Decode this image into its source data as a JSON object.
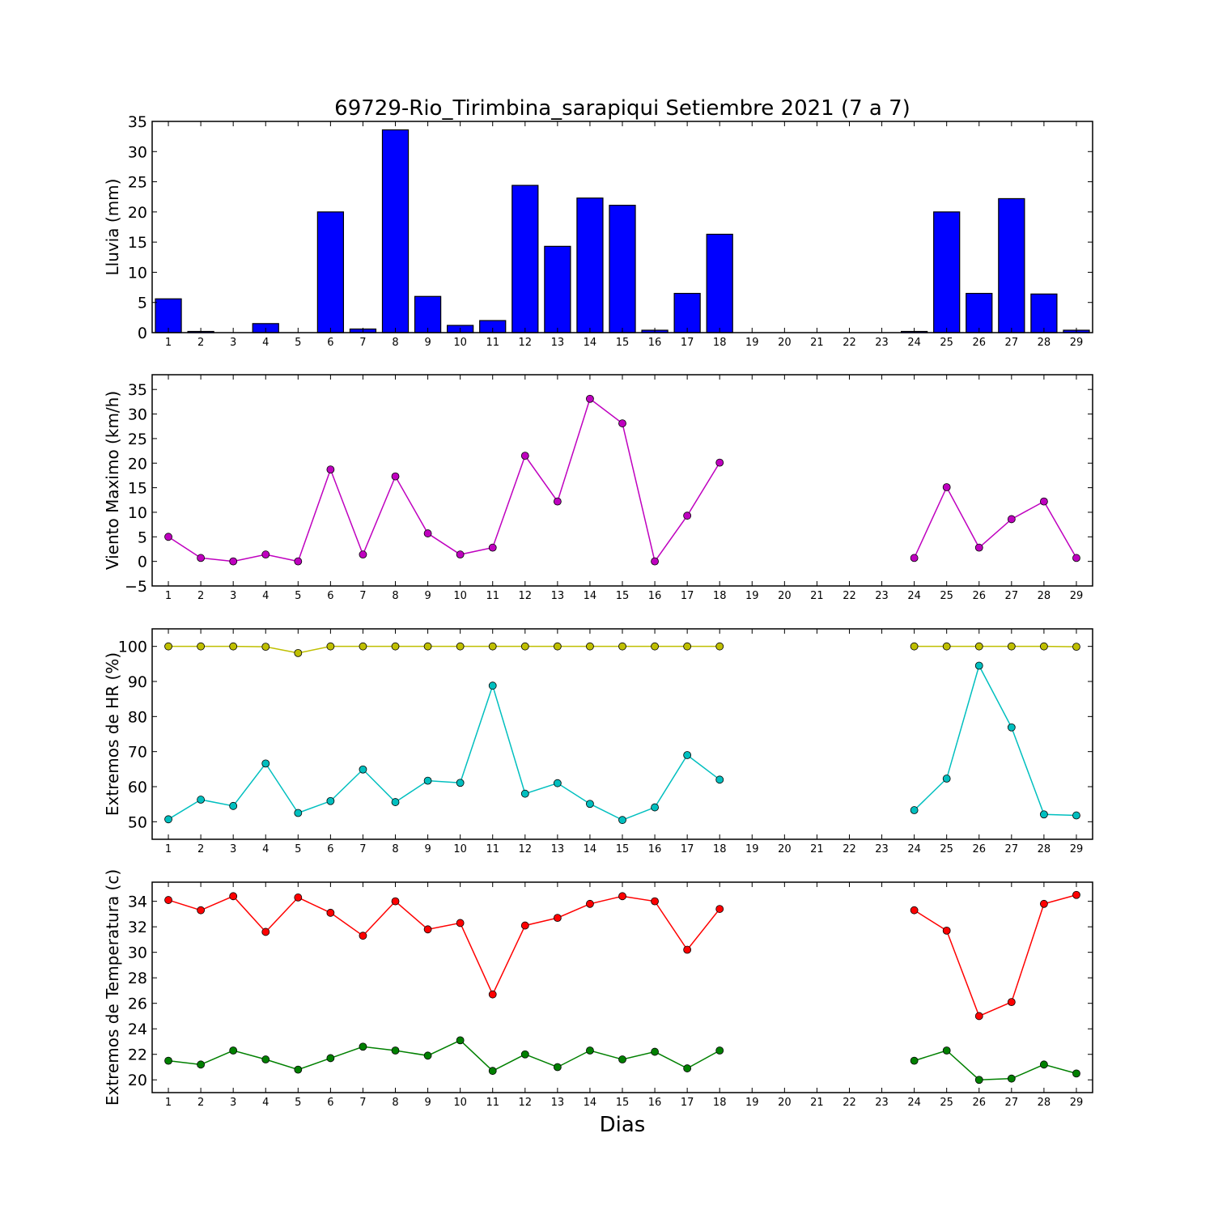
{
  "chart_data": [
    {
      "type": "bar",
      "title": "69729-Rio_Tirimbina_sarapiqui Setiembre 2021  (7 a 7)",
      "ylabel": "Lluvia (mm)",
      "xlabel": "",
      "ylim": [
        0,
        35
      ],
      "yticks": [
        0,
        5,
        10,
        15,
        20,
        25,
        30,
        35
      ],
      "x": [
        1,
        2,
        3,
        4,
        5,
        6,
        7,
        8,
        9,
        10,
        11,
        12,
        13,
        14,
        15,
        16,
        17,
        18,
        19,
        20,
        21,
        22,
        23,
        24,
        25,
        26,
        27,
        28,
        29
      ],
      "series": [
        {
          "values": [
            5.6,
            0.2,
            0,
            1.5,
            0,
            20.0,
            0.6,
            33.6,
            6.0,
            1.2,
            2.0,
            24.4,
            14.3,
            22.3,
            21.1,
            0.4,
            6.5,
            16.3,
            null,
            null,
            null,
            null,
            null,
            0.2,
            20.0,
            6.5,
            22.2,
            6.4,
            0.4
          ],
          "color": "#0000ff"
        }
      ]
    },
    {
      "type": "line",
      "ylabel": "Viento Maximo (km/h)",
      "ylim": [
        -5,
        38
      ],
      "yticks": [
        -5,
        0,
        5,
        10,
        15,
        20,
        25,
        30,
        35
      ],
      "x": [
        1,
        2,
        3,
        4,
        5,
        6,
        7,
        8,
        9,
        10,
        11,
        12,
        13,
        14,
        15,
        16,
        17,
        18,
        19,
        20,
        21,
        22,
        23,
        24,
        25,
        26,
        27,
        28,
        29
      ],
      "series": [
        {
          "values": [
            5.0,
            0.7,
            0,
            1.4,
            0,
            18.7,
            1.4,
            17.3,
            5.7,
            1.4,
            2.8,
            21.5,
            12.2,
            33.1,
            28.1,
            0,
            9.3,
            20.1,
            null,
            null,
            null,
            null,
            null,
            0.7,
            15.1,
            2.8,
            8.6,
            12.2,
            0.7
          ],
          "color": "#bf00bf"
        }
      ]
    },
    {
      "type": "line",
      "ylabel": "Extremos de HR (%)",
      "ylim": [
        45,
        105
      ],
      "yticks": [
        50,
        60,
        70,
        80,
        90,
        100
      ],
      "x": [
        1,
        2,
        3,
        4,
        5,
        6,
        7,
        8,
        9,
        10,
        11,
        12,
        13,
        14,
        15,
        16,
        17,
        18,
        19,
        20,
        21,
        22,
        23,
        24,
        25,
        26,
        27,
        28,
        29
      ],
      "series": [
        {
          "values": [
            100,
            100,
            100,
            99.9,
            98.1,
            100,
            100,
            100,
            100,
            100,
            100,
            100,
            100,
            100,
            100,
            100,
            100,
            100,
            null,
            null,
            null,
            null,
            null,
            100,
            100,
            100,
            100,
            100,
            99.9
          ],
          "color": "#bfbf00"
        },
        {
          "values": [
            50.7,
            56.3,
            54.5,
            66.6,
            52.5,
            55.9,
            64.9,
            55.6,
            61.7,
            61.1,
            88.8,
            58.0,
            61.0,
            55.1,
            50.5,
            54.1,
            69.0,
            62.0,
            null,
            null,
            null,
            null,
            null,
            53.3,
            62.3,
            94.5,
            76.9,
            52.1,
            51.8
          ],
          "color": "#00bfbf"
        }
      ]
    },
    {
      "type": "line",
      "ylabel": "Extremos de Temperatura (c)",
      "xlabel": "Dias",
      "ylim": [
        19,
        35.5
      ],
      "yticks": [
        20,
        22,
        24,
        26,
        28,
        30,
        32,
        34
      ],
      "x": [
        1,
        2,
        3,
        4,
        5,
        6,
        7,
        8,
        9,
        10,
        11,
        12,
        13,
        14,
        15,
        16,
        17,
        18,
        19,
        20,
        21,
        22,
        23,
        24,
        25,
        26,
        27,
        28,
        29
      ],
      "series": [
        {
          "values": [
            34.1,
            33.3,
            34.4,
            31.6,
            34.3,
            33.1,
            31.3,
            34.0,
            31.8,
            32.3,
            26.7,
            32.1,
            32.7,
            33.8,
            34.4,
            34.0,
            30.2,
            33.4,
            null,
            null,
            null,
            null,
            null,
            33.3,
            31.7,
            25.0,
            26.1,
            33.8,
            34.5
          ],
          "color": "#ff0000"
        },
        {
          "values": [
            21.5,
            21.2,
            22.3,
            21.6,
            20.8,
            21.7,
            22.6,
            22.3,
            21.9,
            23.1,
            20.7,
            22.0,
            21.0,
            22.3,
            21.6,
            22.2,
            20.9,
            22.3,
            null,
            null,
            null,
            null,
            null,
            21.5,
            22.3,
            20.0,
            20.1,
            21.2,
            20.5
          ],
          "color": "#008000"
        }
      ]
    }
  ]
}
